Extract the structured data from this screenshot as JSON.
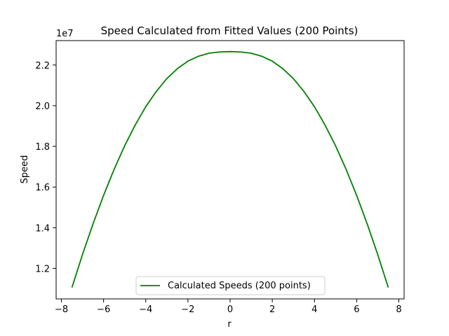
{
  "chart_data": {
    "type": "line",
    "title": "Speed Calculated from Fitted Values (200 Points)",
    "xlabel": "r",
    "ylabel": "Speed",
    "offset_label": "1e7",
    "xlim": [
      -8.25,
      8.25
    ],
    "ylim": [
      10500000,
      23200000
    ],
    "x_ticks": [
      -8,
      -6,
      -4,
      -2,
      0,
      2,
      4,
      6,
      8
    ],
    "x_tick_labels": [
      "−8",
      "−6",
      "−4",
      "−2",
      "0",
      "2",
      "4",
      "6",
      "8"
    ],
    "y_ticks": [
      12000000,
      14000000,
      16000000,
      18000000,
      20000000,
      22000000
    ],
    "y_tick_labels": [
      "1.2",
      "1.4",
      "1.6",
      "1.8",
      "2.0",
      "2.2"
    ],
    "grid": false,
    "legend": {
      "placement": "lower-center"
    },
    "series": [
      {
        "name": "Calculated Speeds (200 points)",
        "color": "#008000",
        "x": [
          -7.5,
          -7.0,
          -6.5,
          -6.0,
          -5.5,
          -5.0,
          -4.5,
          -4.0,
          -3.5,
          -3.0,
          -2.5,
          -2.0,
          -1.5,
          -1.0,
          -0.5,
          0.0,
          0.5,
          1.0,
          1.5,
          2.0,
          2.5,
          3.0,
          3.5,
          4.0,
          4.5,
          5.0,
          5.5,
          6.0,
          6.5,
          7.0,
          7.5
        ],
        "y": [
          11060000,
          12680000,
          14190000,
          15590000,
          16870000,
          18030000,
          19050000,
          19950000,
          20700000,
          21330000,
          21820000,
          22190000,
          22430000,
          22580000,
          22640000,
          22660000,
          22640000,
          22580000,
          22430000,
          22190000,
          21820000,
          21330000,
          20700000,
          19950000,
          19050000,
          18030000,
          16870000,
          15590000,
          14190000,
          12680000,
          11060000
        ]
      }
    ]
  }
}
